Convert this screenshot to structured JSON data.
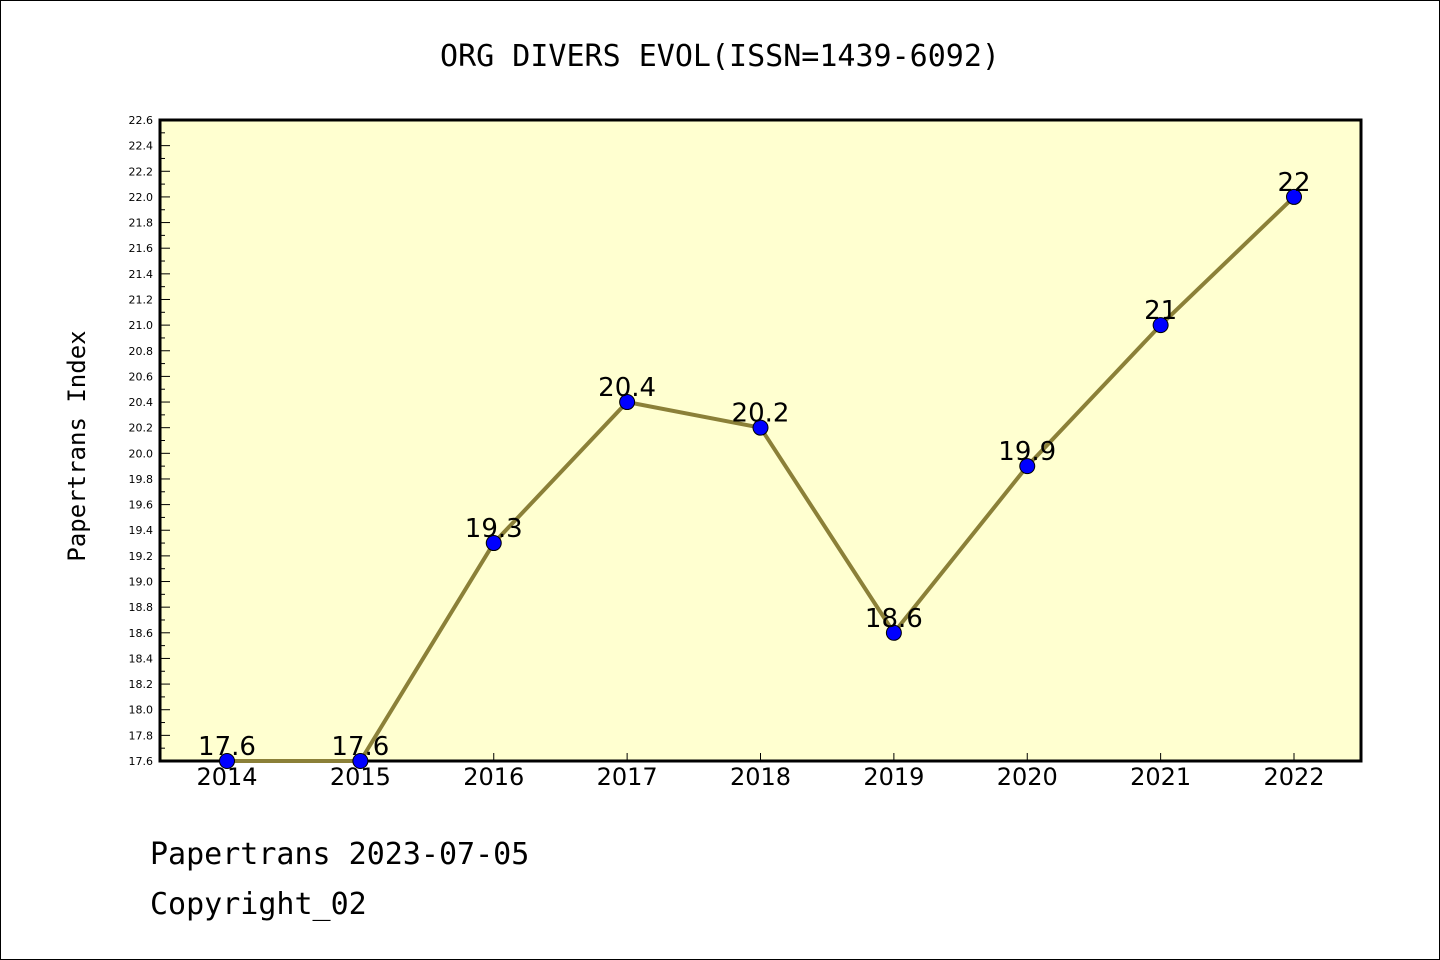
{
  "chart_data": {
    "type": "line",
    "title": "ORG DIVERS EVOL(ISSN=1439-6092)",
    "xlabel": "",
    "ylabel": "Papertrans Index",
    "categories": [
      "2014",
      "2015",
      "2016",
      "2017",
      "2018",
      "2019",
      "2020",
      "2021",
      "2022"
    ],
    "series": [
      {
        "values": [
          17.6,
          17.6,
          19.3,
          20.4,
          20.2,
          18.6,
          19.9,
          21,
          22
        ],
        "labels": [
          "17.6",
          "17.6",
          "19.3",
          "20.4",
          "20.2",
          "18.6",
          "19.9",
          "21",
          "22"
        ]
      }
    ],
    "ylim": [
      17.6,
      22.6
    ],
    "yticks": [
      "17.6",
      "17.8",
      "18.0",
      "18.2",
      "18.4",
      "18.6",
      "18.8",
      "19.0",
      "19.2",
      "19.4",
      "19.6",
      "19.8",
      "20.0",
      "20.2",
      "20.4",
      "20.6",
      "20.8",
      "21.0",
      "21.2",
      "21.4",
      "21.6",
      "21.8",
      "22.0",
      "22.2",
      "22.4",
      "22.6"
    ],
    "grid": false,
    "colors": {
      "plot_background": "#ffffd0",
      "line": "#8b8038",
      "marker": "#0000ff"
    }
  },
  "footer": {
    "line1": "Papertrans 2023-07-05",
    "line2": "Copyright_02"
  }
}
